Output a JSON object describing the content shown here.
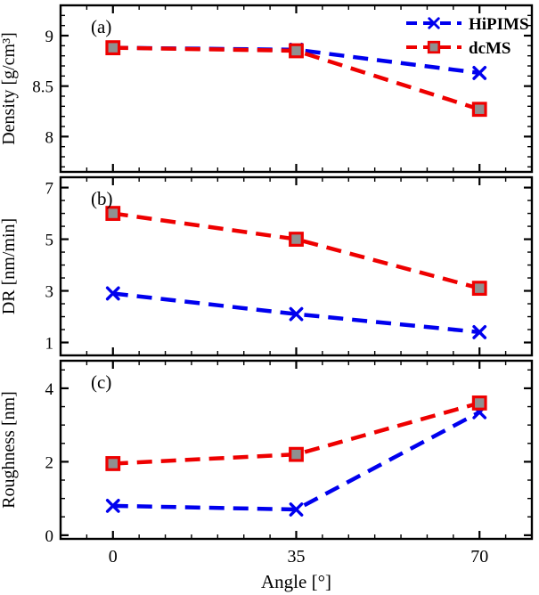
{
  "figure": {
    "xlabel": "Angle [°]",
    "xlim": [
      -10,
      80
    ],
    "xticks": [
      0,
      35,
      70
    ],
    "xtick_labels": [
      "0",
      "35",
      "70"
    ],
    "minor_x_step": 5,
    "marker_face_color": "#909090",
    "frame_color": "#000000",
    "legend": {
      "position": "top-right",
      "entries": [
        {
          "label": "HiPIMS",
          "color": "#0000EE",
          "marker": "x"
        },
        {
          "label": "dcMS",
          "color": "#EE0000",
          "marker": "square"
        }
      ]
    }
  },
  "chart_data": [
    {
      "type": "line",
      "panel_label": "(a)",
      "ylabel": "Density [g/cm³]",
      "ylim": [
        7.65,
        9.3
      ],
      "yticks": [
        8,
        8.5,
        9
      ],
      "ytick_labels": [
        "8",
        "8.5",
        "9"
      ],
      "minor_y_step": 0.1,
      "x": [
        0,
        35,
        70
      ],
      "series": [
        {
          "name": "HiPIMS",
          "marker": "x",
          "color": "#0000EE",
          "values": [
            8.88,
            8.86,
            8.63
          ]
        },
        {
          "name": "dcMS",
          "marker": "square",
          "color": "#EE0000",
          "values": [
            8.88,
            8.85,
            8.27
          ]
        }
      ]
    },
    {
      "type": "line",
      "panel_label": "(b)",
      "ylabel": "DR [nm/min]",
      "ylim": [
        0.5,
        7.4
      ],
      "yticks": [
        1,
        3,
        5,
        7
      ],
      "ytick_labels": [
        "1",
        "3",
        "5",
        "7"
      ],
      "minor_y_step": 0.5,
      "x": [
        0,
        35,
        70
      ],
      "series": [
        {
          "name": "HiPIMS",
          "marker": "x",
          "color": "#0000EE",
          "values": [
            2.9,
            2.1,
            1.4
          ]
        },
        {
          "name": "dcMS",
          "marker": "square",
          "color": "#EE0000",
          "values": [
            6.0,
            5.0,
            3.1
          ]
        }
      ]
    },
    {
      "type": "line",
      "panel_label": "(c)",
      "ylabel": "Roughness [nm]",
      "ylim": [
        -0.1,
        4.75
      ],
      "yticks": [
        0,
        2,
        4
      ],
      "ytick_labels": [
        "0",
        "2",
        "4"
      ],
      "minor_y_step": 0.5,
      "x": [
        0,
        35,
        70
      ],
      "series": [
        {
          "name": "HiPIMS",
          "marker": "x",
          "color": "#0000EE",
          "values": [
            0.8,
            0.7,
            3.35
          ]
        },
        {
          "name": "dcMS",
          "marker": "square",
          "color": "#EE0000",
          "values": [
            1.95,
            2.2,
            3.6
          ]
        }
      ]
    }
  ]
}
